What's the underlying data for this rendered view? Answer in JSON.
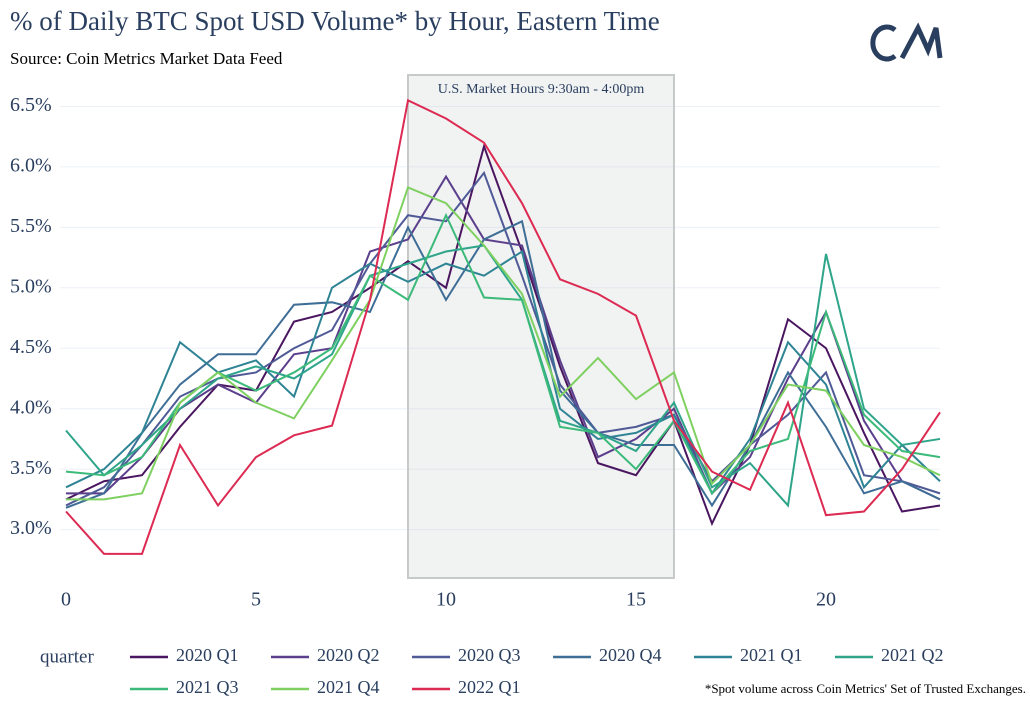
{
  "chart_data": {
    "type": "line",
    "title": "% of Daily BTC Spot USD Volume* by Hour, Eastern Time",
    "subtitle": "Source: Coin Metrics Market Data Feed",
    "annotation": "U.S. Market Hours 9:30am - 4:00pm",
    "shaded_x": [
      9,
      16
    ],
    "footnote": "*Spot volume across Coin Metrics' Set of Trusted Exchanges.",
    "legend_title": "quarter",
    "x": [
      0,
      1,
      2,
      3,
      4,
      5,
      6,
      7,
      8,
      9,
      10,
      11,
      12,
      13,
      14,
      15,
      16,
      17,
      18,
      19,
      20,
      21,
      22,
      23
    ],
    "xlim": [
      0,
      23
    ],
    "xticks": [
      0,
      5,
      10,
      15,
      20
    ],
    "ylim": [
      2.6,
      6.76
    ],
    "yticks": [
      {
        "value": 3.0,
        "label": "3.0%"
      },
      {
        "value": 3.5,
        "label": "3.5%"
      },
      {
        "value": 4.0,
        "label": "4.0%"
      },
      {
        "value": 4.5,
        "label": "4.5%"
      },
      {
        "value": 5.0,
        "label": "5.0%"
      },
      {
        "value": 5.5,
        "label": "5.5%"
      },
      {
        "value": 6.0,
        "label": "6.0%"
      },
      {
        "value": 6.5,
        "label": "6.5%"
      }
    ],
    "grid": true,
    "series": [
      {
        "name": "2020 Q1",
        "color": "#4a1660",
        "values": [
          3.25,
          3.4,
          3.45,
          3.85,
          4.2,
          4.15,
          4.72,
          4.8,
          5.0,
          5.22,
          5.0,
          6.17,
          5.3,
          4.35,
          3.55,
          3.45,
          3.9,
          3.05,
          3.7,
          4.74,
          4.5,
          3.8,
          3.15,
          3.2
        ]
      },
      {
        "name": "2020 Q2",
        "color": "#5b3f8c",
        "values": [
          3.3,
          3.3,
          3.6,
          4.0,
          4.2,
          4.05,
          4.45,
          4.5,
          5.3,
          5.4,
          5.92,
          5.4,
          5.35,
          4.4,
          3.6,
          3.75,
          4.0,
          3.3,
          3.6,
          4.25,
          4.8,
          3.9,
          3.4,
          3.25
        ]
      },
      {
        "name": "2020 Q3",
        "color": "#4f5a96",
        "values": [
          3.2,
          3.35,
          3.7,
          4.1,
          4.25,
          4.3,
          4.5,
          4.65,
          5.2,
          5.6,
          5.55,
          5.95,
          5.1,
          4.2,
          3.8,
          3.85,
          3.95,
          3.4,
          3.7,
          3.95,
          4.3,
          3.45,
          3.4,
          3.3
        ]
      },
      {
        "name": "2020 Q4",
        "color": "#3e6e96",
        "values": [
          3.18,
          3.3,
          3.8,
          4.2,
          4.45,
          4.45,
          4.86,
          4.88,
          4.8,
          5.5,
          4.9,
          5.4,
          5.55,
          4.15,
          3.8,
          3.7,
          3.7,
          3.2,
          3.7,
          4.3,
          3.85,
          3.3,
          3.4,
          3.25
        ]
      },
      {
        "name": "2021 Q1",
        "color": "#2e8494",
        "values": [
          3.35,
          3.5,
          3.8,
          4.55,
          4.3,
          4.4,
          4.1,
          5.0,
          5.2,
          5.05,
          5.2,
          5.1,
          5.3,
          4.0,
          3.75,
          3.8,
          3.95,
          3.3,
          3.75,
          4.55,
          4.2,
          3.35,
          3.7,
          3.4
        ]
      },
      {
        "name": "2021 Q2",
        "color": "#2ea58a",
        "values": [
          3.82,
          3.45,
          3.7,
          4.0,
          4.25,
          4.35,
          4.25,
          4.45,
          5.1,
          5.2,
          5.3,
          5.35,
          4.9,
          3.9,
          3.8,
          3.65,
          4.05,
          3.35,
          3.55,
          3.2,
          5.28,
          4.0,
          3.7,
          3.75
        ]
      },
      {
        "name": "2021 Q3",
        "color": "#3bba7a",
        "values": [
          3.48,
          3.45,
          3.6,
          4.05,
          4.3,
          4.15,
          4.3,
          4.5,
          5.1,
          4.9,
          5.6,
          4.92,
          4.9,
          3.85,
          3.8,
          3.5,
          3.9,
          3.3,
          3.65,
          3.75,
          4.8,
          3.95,
          3.65,
          3.6
        ]
      },
      {
        "name": "2021 Q4",
        "color": "#7ed060",
        "values": [
          3.25,
          3.25,
          3.3,
          4.05,
          4.3,
          4.05,
          3.92,
          4.4,
          4.9,
          5.83,
          5.7,
          5.35,
          4.95,
          4.1,
          4.42,
          4.08,
          4.3,
          3.38,
          3.7,
          4.2,
          4.15,
          3.7,
          3.6,
          3.45
        ]
      },
      {
        "name": "2022 Q1",
        "color": "#dc2a52",
        "values": [
          3.15,
          2.8,
          2.8,
          3.7,
          3.2,
          3.6,
          3.78,
          3.86,
          4.9,
          6.55,
          6.4,
          6.2,
          5.7,
          5.07,
          4.95,
          4.77,
          3.9,
          3.48,
          3.33,
          4.05,
          3.12,
          3.15,
          3.5,
          3.97
        ]
      }
    ]
  }
}
